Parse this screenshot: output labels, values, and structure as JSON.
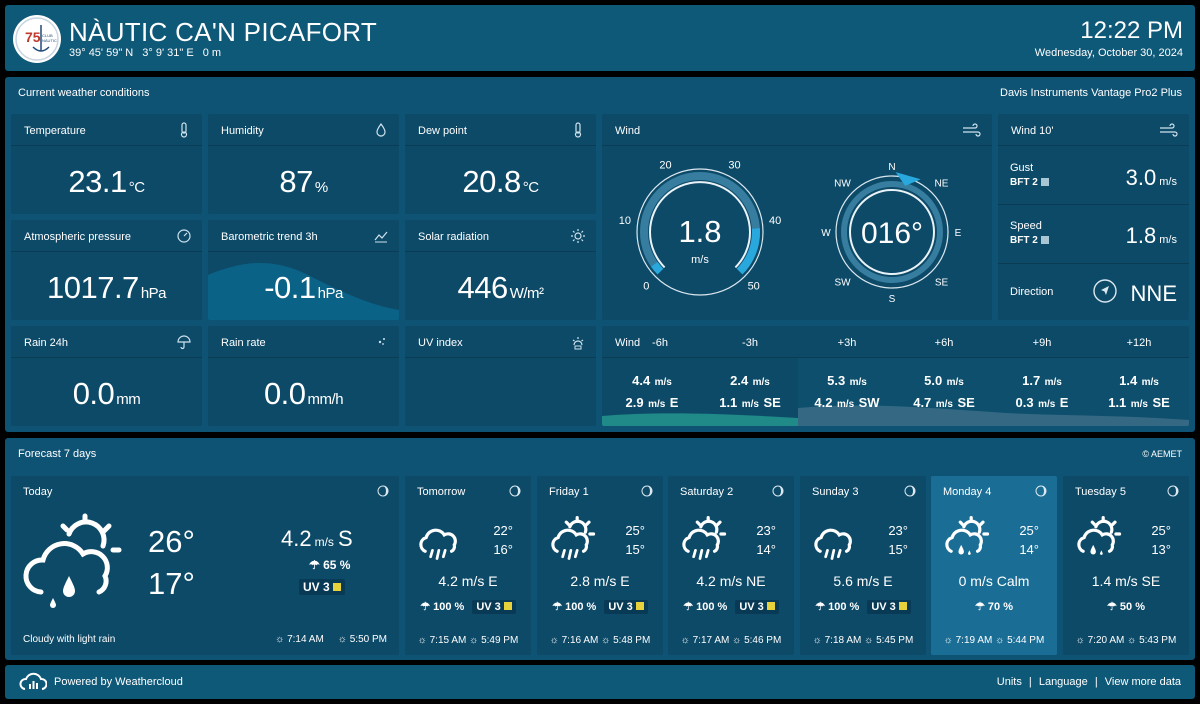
{
  "header": {
    "logo_text": "75 CLUB NÀUTIC CAN PICAFORT",
    "title": "NÀUTIC CA'N PICAFORT",
    "lat": "39° 45' 59\" N",
    "lon": "3° 9' 31\" E",
    "alt": "0 m",
    "time": "12:22 PM",
    "date": "Wednesday, October 30, 2024"
  },
  "current": {
    "section_title": "Current weather conditions",
    "device": "Davis Instruments Vantage Pro2 Plus",
    "temperature": {
      "label": "Temperature",
      "value": "23.1",
      "unit": "°C"
    },
    "humidity": {
      "label": "Humidity",
      "value": "87",
      "unit": "%"
    },
    "dew_point": {
      "label": "Dew point",
      "value": "20.8",
      "unit": "°C"
    },
    "pressure": {
      "label": "Atmospheric pressure",
      "value": "1017.7",
      "unit": "hPa"
    },
    "baro_trend": {
      "label": "Barometric trend 3h",
      "value": "-0.1",
      "unit": "hPa"
    },
    "solar": {
      "label": "Solar radiation",
      "value": "446",
      "unit": "W/m²"
    },
    "rain24": {
      "label": "Rain 24h",
      "value": "0.0",
      "unit": "mm"
    },
    "rain_rate": {
      "label": "Rain rate",
      "value": "0.0",
      "unit": "mm/h"
    },
    "uv": {
      "label": "UV index",
      "value": ""
    },
    "wind": {
      "label": "Wind",
      "speed": "1.8",
      "unit": "m/s",
      "speed_level": 0.036,
      "scale_ticks": [
        "0",
        "10",
        "20",
        "30",
        "40",
        "50"
      ],
      "direction": "016°",
      "direction_deg": 16,
      "compass": [
        "N",
        "NE",
        "E",
        "SE",
        "S",
        "SW",
        "W",
        "NW"
      ]
    },
    "wind10": {
      "label": "Wind 10'",
      "gust_label": "Gust",
      "gust_bft": "BFT 2",
      "gust_value": "3.0",
      "speed_label": "Speed",
      "speed_bft": "BFT 2",
      "speed_value": "1.8",
      "unit": "m/s",
      "direction_label": "Direction",
      "direction_value": "NNE"
    },
    "wind_timeline": {
      "label": "Wind",
      "columns": [
        {
          "h": "-6h",
          "speed": "4.4",
          "gust": "2.9",
          "dir": "E"
        },
        {
          "h": "-3h",
          "speed": "2.4",
          "gust": "1.1",
          "dir": "SE"
        },
        {
          "h": "+3h",
          "speed": "5.3",
          "gust": "4.2",
          "dir": "SW"
        },
        {
          "h": "+6h",
          "speed": "5.0",
          "gust": "4.7",
          "dir": "SE"
        },
        {
          "h": "+9h",
          "speed": "1.7",
          "gust": "0.3",
          "dir": "E"
        },
        {
          "h": "+12h",
          "speed": "1.4",
          "gust": "1.1",
          "dir": "SE"
        }
      ],
      "unit": "m/s"
    }
  },
  "forecast": {
    "section_title": "Forecast 7 days",
    "source": "AEMET",
    "today": {
      "day": "Today",
      "hi": "26°",
      "lo": "17°",
      "wind": "4.2",
      "wind_unit": "m/s",
      "wind_dir": "S",
      "precip": "65 %",
      "uv": "UV 3",
      "description": "Cloudy with light rain",
      "sunrise": "7:14 AM",
      "sunset": "5:50 PM"
    },
    "days": [
      {
        "day": "Tomorrow",
        "hi": "22°",
        "lo": "16°",
        "wind": "4.2 m/s E",
        "precip": "100 %",
        "uv": "UV 3",
        "sunrise": "7:15 AM",
        "sunset": "5:49 PM",
        "icon": "rain-cloud"
      },
      {
        "day": "Friday 1",
        "hi": "25°",
        "lo": "15°",
        "wind": "2.8 m/s E",
        "precip": "100 %",
        "uv": "UV 3",
        "sunrise": "7:16 AM",
        "sunset": "5:48 PM",
        "icon": "sun-rain-cloud"
      },
      {
        "day": "Saturday 2",
        "hi": "23°",
        "lo": "14°",
        "wind": "4.2 m/s NE",
        "precip": "100 %",
        "uv": "UV 3",
        "sunrise": "7:17 AM",
        "sunset": "5:46 PM",
        "icon": "sun-rain-cloud"
      },
      {
        "day": "Sunday 3",
        "hi": "23°",
        "lo": "15°",
        "wind": "5.6 m/s E",
        "precip": "100 %",
        "uv": "UV 3",
        "sunrise": "7:18 AM",
        "sunset": "5:45 PM",
        "icon": "rain-cloud"
      },
      {
        "day": "Monday 4",
        "hi": "25°",
        "lo": "14°",
        "wind": "0 m/s Calm",
        "precip": "70 %",
        "uv": "",
        "sunrise": "7:19 AM",
        "sunset": "5:44 PM",
        "icon": "sun-drizzle-cloud"
      },
      {
        "day": "Tuesday 5",
        "hi": "25°",
        "lo": "13°",
        "wind": "1.4 m/s SE",
        "precip": "50 %",
        "uv": "",
        "sunrise": "7:20 AM",
        "sunset": "5:43 PM",
        "icon": "sun-drizzle-cloud"
      }
    ]
  },
  "footer": {
    "powered": "Powered by Weathercloud",
    "units": "Units",
    "language": "Language",
    "more": "View more data",
    "sep": "|"
  },
  "colors": {
    "panel": "#0f4e6e",
    "card": "#0d4a68",
    "accent": "#2aa4d8",
    "uv": "#e8d23c",
    "monday": "#1a6e96"
  }
}
